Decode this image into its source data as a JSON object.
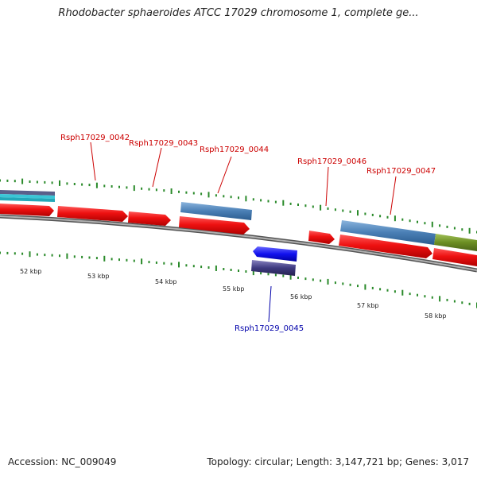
{
  "title": "Rhodobacter sphaeroides ATCC 17029 chromosome 1, complete ge...",
  "footer": {
    "accession": "Accession: NC_009049",
    "stats": "Topology: circular; Length: 3,147,721 bp; Genes: 3,017"
  },
  "scale": {
    "tick_labels": [
      "52 kbp",
      "53 kbp",
      "54 kbp",
      "55 kbp",
      "56 kbp",
      "57 kbp",
      "58 kbp"
    ]
  },
  "genes": [
    {
      "label": "Rsph17029_0042",
      "strand": "forward",
      "color": "#cc0000"
    },
    {
      "label": "Rsph17029_0043",
      "strand": "forward",
      "color": "#cc0000"
    },
    {
      "label": "Rsph17029_0044",
      "strand": "forward",
      "color": "#cc0000"
    },
    {
      "label": "Rsph17029_0045",
      "strand": "reverse",
      "color": "#0000aa"
    },
    {
      "label": "Rsph17029_0046",
      "strand": "forward",
      "color": "#cc0000"
    },
    {
      "label": "Rsph17029_0047",
      "strand": "forward",
      "color": "#cc0000"
    }
  ],
  "colors": {
    "forward_cds": "#ee1111",
    "reverse_cds": "#1111ee",
    "forward_feature": "#4a7fb5",
    "reverse_feature": "#3e3a80",
    "misc_feature": "#6b8e23",
    "backbone": "#888888",
    "ticks": "#2a8a2a"
  }
}
